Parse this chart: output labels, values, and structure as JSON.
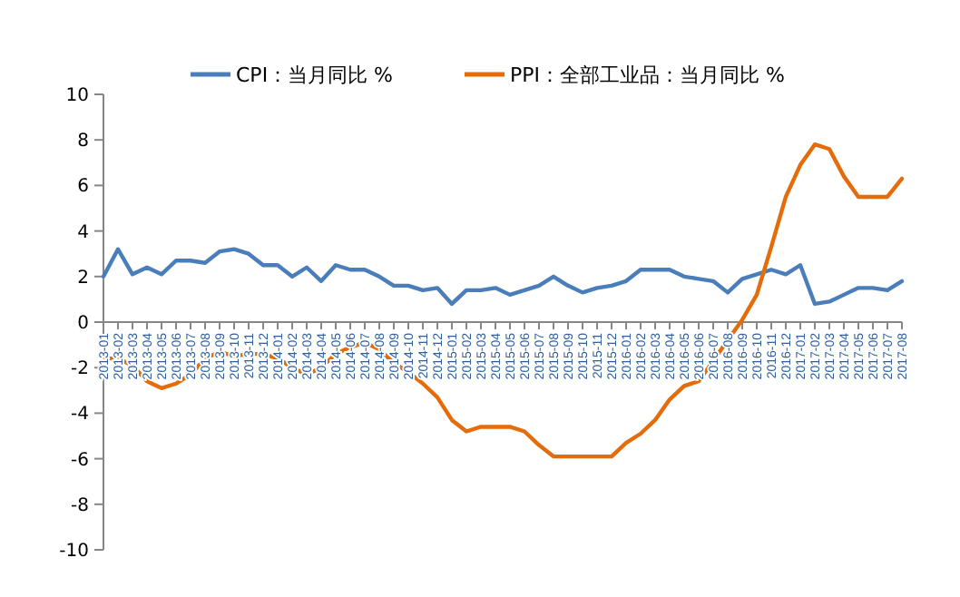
{
  "chart_data": {
    "type": "line",
    "categories": [
      "2013-01",
      "2013-02",
      "2013-03",
      "2013-04",
      "2013-05",
      "2013-06",
      "2013-07",
      "2013-08",
      "2013-09",
      "2013-10",
      "2013-11",
      "2013-12",
      "2014-01",
      "2014-02",
      "2014-03",
      "2014-04",
      "2014-05",
      "2014-06",
      "2014-07",
      "2014-08",
      "2014-09",
      "2014-10",
      "2014-11",
      "2014-12",
      "2015-01",
      "2015-02",
      "2015-03",
      "2015-04",
      "2015-05",
      "2015-06",
      "2015-07",
      "2015-08",
      "2015-09",
      "2015-10",
      "2015-11",
      "2015-12",
      "2016-01",
      "2016-02",
      "2016-03",
      "2016-04",
      "2016-05",
      "2016-06",
      "2016-07",
      "2016-08",
      "2016-09",
      "2016-10",
      "2016-11",
      "2016-12",
      "2017-01",
      "2017-02",
      "2017-03",
      "2017-04",
      "2017-05",
      "2017-06",
      "2017-07",
      "2017-08"
    ],
    "series": [
      {
        "name": "CPI：当月同比 %",
        "color": "#4a7ebb",
        "values": [
          2.0,
          3.2,
          2.1,
          2.4,
          2.1,
          2.7,
          2.7,
          2.6,
          3.1,
          3.2,
          3.0,
          2.5,
          2.5,
          2.0,
          2.4,
          1.8,
          2.5,
          2.3,
          2.3,
          2.0,
          1.6,
          1.6,
          1.4,
          1.5,
          0.8,
          1.4,
          1.4,
          1.5,
          1.2,
          1.4,
          1.6,
          2.0,
          1.6,
          1.3,
          1.5,
          1.6,
          1.8,
          2.3,
          2.3,
          2.3,
          2.0,
          1.9,
          1.8,
          1.3,
          1.9,
          2.1,
          2.3,
          2.1,
          2.5,
          0.8,
          0.9,
          1.2,
          1.5,
          1.5,
          1.4,
          1.8
        ]
      },
      {
        "name": "PPI：全部工业品：当月同比 %",
        "color": "#e46c0a",
        "values": [
          -1.6,
          -1.6,
          -1.9,
          -2.6,
          -2.9,
          -2.7,
          -2.3,
          -1.6,
          -1.3,
          -1.5,
          -1.4,
          -1.4,
          -1.6,
          -2.0,
          -2.3,
          -2.0,
          -1.4,
          -1.1,
          -0.9,
          -1.2,
          -1.8,
          -2.2,
          -2.7,
          -3.3,
          -4.3,
          -4.8,
          -4.6,
          -4.6,
          -4.6,
          -4.8,
          -5.4,
          -5.9,
          -5.9,
          -5.9,
          -5.9,
          -5.9,
          -5.3,
          -4.9,
          -4.3,
          -3.4,
          -2.8,
          -2.6,
          -1.7,
          -0.8,
          0.1,
          1.2,
          3.3,
          5.5,
          6.9,
          7.8,
          7.6,
          6.4,
          5.5,
          5.5,
          5.5,
          6.3
        ]
      }
    ],
    "ylim": [
      -10,
      10
    ],
    "yticks": [
      -10,
      -8,
      -6,
      -4,
      -2,
      0,
      2,
      4,
      6,
      8,
      10
    ],
    "legend": "top",
    "marker": "none",
    "line_style": "solid"
  }
}
